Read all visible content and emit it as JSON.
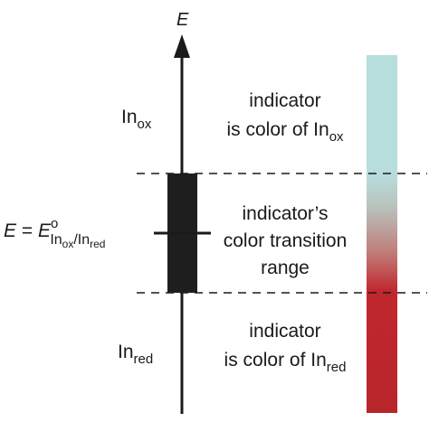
{
  "axis": {
    "label": "E"
  },
  "regions": {
    "top": {
      "species_main": "In",
      "species_sub": "ox",
      "line1": "indicator",
      "line2_main": "is color of In",
      "line2_sub": "ox"
    },
    "middle": {
      "line1": "indicator’s",
      "line2": "color transition",
      "line3": "range"
    },
    "bottom": {
      "species_main": "In",
      "species_sub": "red",
      "line1": "indicator",
      "line2_main": "is color of In",
      "line2_sub": "red"
    }
  },
  "potential_label": {
    "lhs": "E",
    "eq": " = ",
    "rhs": "E",
    "superscript": "o",
    "sub_a_main": "In",
    "sub_a_sub": "ox",
    "slash": "/",
    "sub_b_main": "In",
    "sub_b_sub": "red"
  },
  "colors": {
    "oxidized": "#b7dedd",
    "reduced": "#c0272d",
    "box": "#1e1e1e",
    "line": "#1a1a1a"
  }
}
